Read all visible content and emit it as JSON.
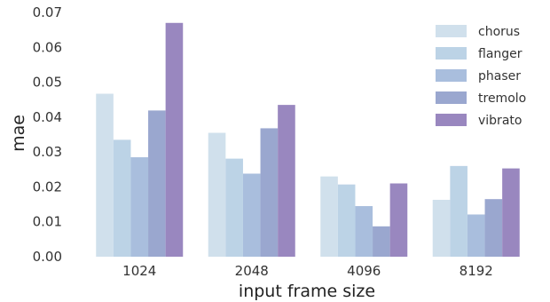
{
  "chart_data": {
    "type": "bar",
    "categories": [
      "1024",
      "2048",
      "4096",
      "8192"
    ],
    "xlabel": "input frame size",
    "ylabel": "mae",
    "ylim": [
      0,
      0.07
    ],
    "yticks": [
      "0.00",
      "0.01",
      "0.02",
      "0.03",
      "0.04",
      "0.05",
      "0.06",
      "0.07"
    ],
    "grid": false,
    "legend_position": "top-right",
    "series": [
      {
        "name": "chorus",
        "color": "#d0e0ec",
        "values": [
          0.0467,
          0.0355,
          0.023,
          0.0163
        ]
      },
      {
        "name": "flanger",
        "color": "#bcd3e6",
        "values": [
          0.0335,
          0.0281,
          0.0207,
          0.026
        ]
      },
      {
        "name": "phaser",
        "color": "#a9bedd",
        "values": [
          0.0285,
          0.0238,
          0.0145,
          0.0121
        ]
      },
      {
        "name": "tremolo",
        "color": "#9aa7cf",
        "values": [
          0.0419,
          0.0368,
          0.0087,
          0.0165
        ]
      },
      {
        "name": "vibrato",
        "color": "#9987bf",
        "values": [
          0.067,
          0.0435,
          0.021,
          0.0253
        ]
      }
    ]
  }
}
